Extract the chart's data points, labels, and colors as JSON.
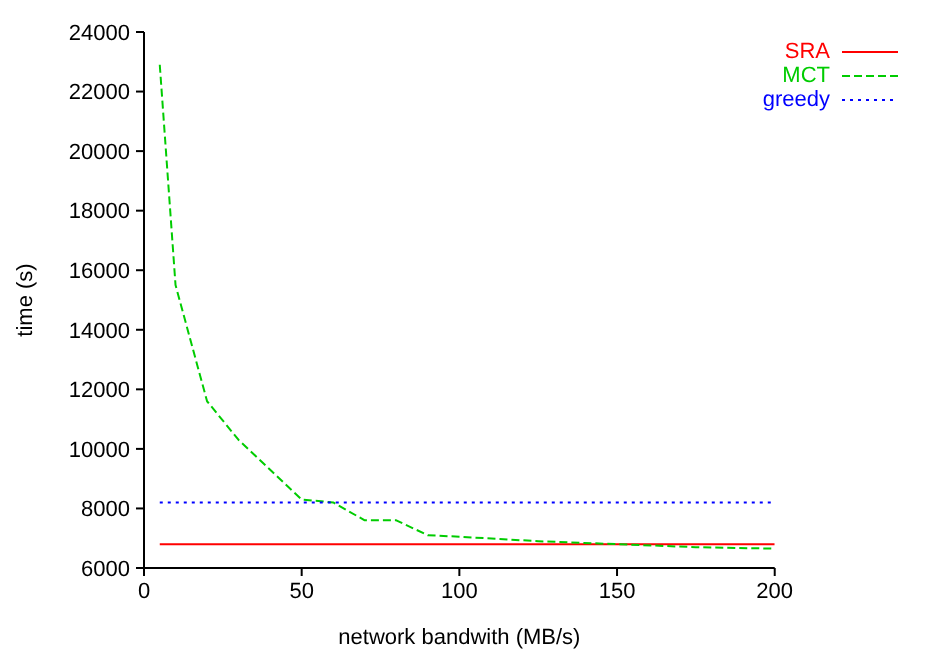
{
  "chart_data": {
    "type": "line",
    "xlabel": "network bandwith (MB/s)",
    "ylabel": "time (s)",
    "x": [
      5,
      10,
      20,
      30,
      40,
      50,
      60,
      70,
      80,
      90,
      100,
      125,
      150,
      175,
      200
    ],
    "series": [
      {
        "name": "SRA",
        "color": "#ff0000",
        "line_style": "solid",
        "values": [
          6800,
          6800,
          6800,
          6800,
          6800,
          6800,
          6800,
          6800,
          6800,
          6800,
          6800,
          6800,
          6800,
          6800,
          6800
        ]
      },
      {
        "name": "MCT",
        "color": "#00cc00",
        "line_style": "dashed",
        "values": [
          22900,
          15500,
          11600,
          10300,
          9300,
          8300,
          8200,
          7600,
          7600,
          7100,
          7050,
          6900,
          6800,
          6700,
          6650
        ]
      },
      {
        "name": "greedy",
        "color": "#0000ff",
        "line_style": "dotted",
        "values": [
          8200,
          8200,
          8200,
          8200,
          8200,
          8200,
          8200,
          8200,
          8200,
          8200,
          8200,
          8200,
          8200,
          8200,
          8200
        ]
      }
    ],
    "xlim": [
      0,
      200
    ],
    "xticks": [
      0,
      50,
      100,
      150,
      200
    ],
    "ylim": [
      6000,
      24000
    ],
    "yticks": [
      6000,
      8000,
      10000,
      12000,
      14000,
      16000,
      18000,
      20000,
      22000,
      24000
    ],
    "grid": false,
    "legend": "top right",
    "marker": "none"
  }
}
